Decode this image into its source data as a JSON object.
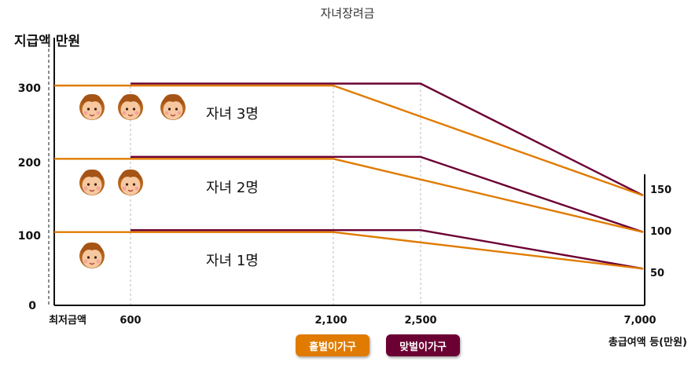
{
  "chart_data": {
    "type": "line",
    "title": "자녀장려금",
    "ylabel": "지급액 만원",
    "xlabel": "총급여액 등(만원)",
    "x_ticks": [
      "최저금액",
      "600",
      "2,100",
      "2,500",
      "7,000"
    ],
    "y_ticks": [
      "0",
      "100",
      "200",
      "300"
    ],
    "right_ticks": [
      "150",
      "100",
      "50"
    ],
    "ylim": [
      0,
      300
    ],
    "groups": [
      "자녀 3명",
      "자녀 2명",
      "자녀 1명"
    ],
    "series": [
      {
        "name": "홑벌이가구",
        "group": "자녀 3명",
        "points": [
          [
            0,
            300
          ],
          [
            2100,
            300
          ],
          [
            7000,
            150
          ]
        ]
      },
      {
        "name": "맞벌이가구",
        "group": "자녀 3명",
        "points": [
          [
            600,
            300
          ],
          [
            2500,
            300
          ],
          [
            7000,
            150
          ]
        ]
      },
      {
        "name": "홑벌이가구",
        "group": "자녀 2명",
        "points": [
          [
            0,
            200
          ],
          [
            2100,
            200
          ],
          [
            7000,
            100
          ]
        ]
      },
      {
        "name": "맞벌이가구",
        "group": "자녀 2명",
        "points": [
          [
            600,
            200
          ],
          [
            2500,
            200
          ],
          [
            7000,
            100
          ]
        ]
      },
      {
        "name": "홑벌이가구",
        "group": "자녀 1명",
        "points": [
          [
            0,
            100
          ],
          [
            2100,
            100
          ],
          [
            7000,
            50
          ]
        ]
      },
      {
        "name": "맞벌이가구",
        "group": "자녀 1명",
        "points": [
          [
            600,
            100
          ],
          [
            2500,
            100
          ],
          [
            7000,
            50
          ]
        ]
      }
    ],
    "colors": {
      "홑벌이가구": "#e07b00",
      "맞벌이가구": "#6b0033"
    },
    "legend": [
      "홑벌이가구",
      "맞벌이가구"
    ],
    "legend_position": "bottom",
    "child_icon_counts": [
      3,
      2,
      1
    ]
  }
}
